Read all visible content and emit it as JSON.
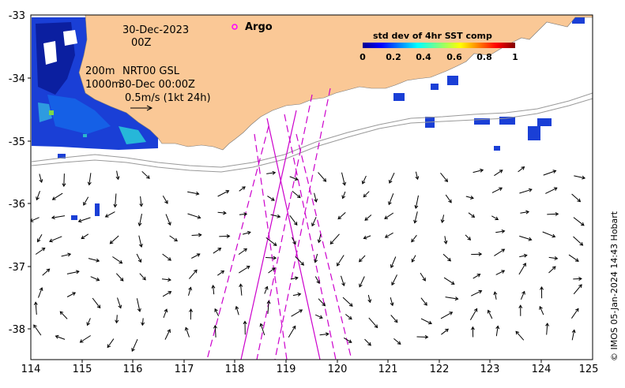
{
  "map": {
    "date_line": "30-Dec-2023",
    "hour_line": "00Z",
    "depth_200": "200m",
    "depth_1000": "1000m",
    "product_line": "NRT00 GSL",
    "product_time": "30-Dec 00:00Z",
    "vector_scale": "0.5m/s (1kt 24h)",
    "argo_label": "Argo",
    "colorbar_title": "std dev of 4hr SST comp",
    "colorbar_ticks": [
      "0",
      "0.2",
      "0.4",
      "0.6",
      "0.8",
      "1"
    ],
    "credit": "© IMOS 05-Jan-2024 14:43 Hobart",
    "x_ticks": [
      "114",
      "115",
      "116",
      "117",
      "118",
      "119",
      "120",
      "121",
      "122",
      "123",
      "124",
      "125"
    ],
    "y_ticks": [
      "-33",
      "-34",
      "-35",
      "-36",
      "-37",
      "-38"
    ],
    "lon_range": [
      114,
      125
    ],
    "lat_range": [
      -38.5,
      -33
    ]
  },
  "colors": {
    "land": "#fac896",
    "track": "#cc00cc",
    "isobath": "#999999",
    "argo": "#ff00ff"
  }
}
